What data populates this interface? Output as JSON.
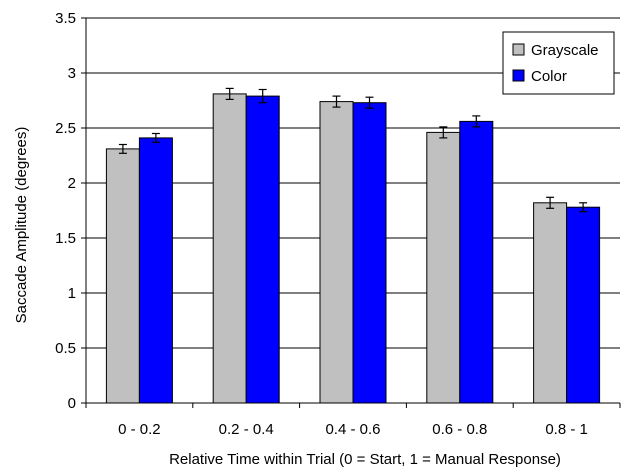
{
  "chart_data": {
    "type": "bar",
    "xlabel": "Relative Time within Trial (0 = Start, 1 = Manual Response)",
    "ylabel": "Saccade Amplitude (degrees)",
    "ylim": [
      0,
      3.5
    ],
    "yticks": [
      "0",
      "0.5",
      "1",
      "1.5",
      "2",
      "2.5",
      "3",
      "3.5"
    ],
    "categories": [
      "0 - 0.2",
      "0.2 - 0.4",
      "0.4 - 0.6",
      "0.6 - 0.8",
      "0.8 - 1"
    ],
    "series": [
      {
        "name": "Grayscale",
        "color": "#c0c0c0",
        "values": [
          2.31,
          2.81,
          2.74,
          2.46,
          1.82
        ],
        "errors": [
          0.04,
          0.05,
          0.05,
          0.05,
          0.05
        ]
      },
      {
        "name": "Color",
        "color": "#0000ff",
        "values": [
          2.41,
          2.79,
          2.73,
          2.56,
          1.78
        ],
        "errors": [
          0.04,
          0.06,
          0.05,
          0.05,
          0.04
        ]
      }
    ],
    "grid": "horizontal",
    "legend_position": "top-right"
  }
}
